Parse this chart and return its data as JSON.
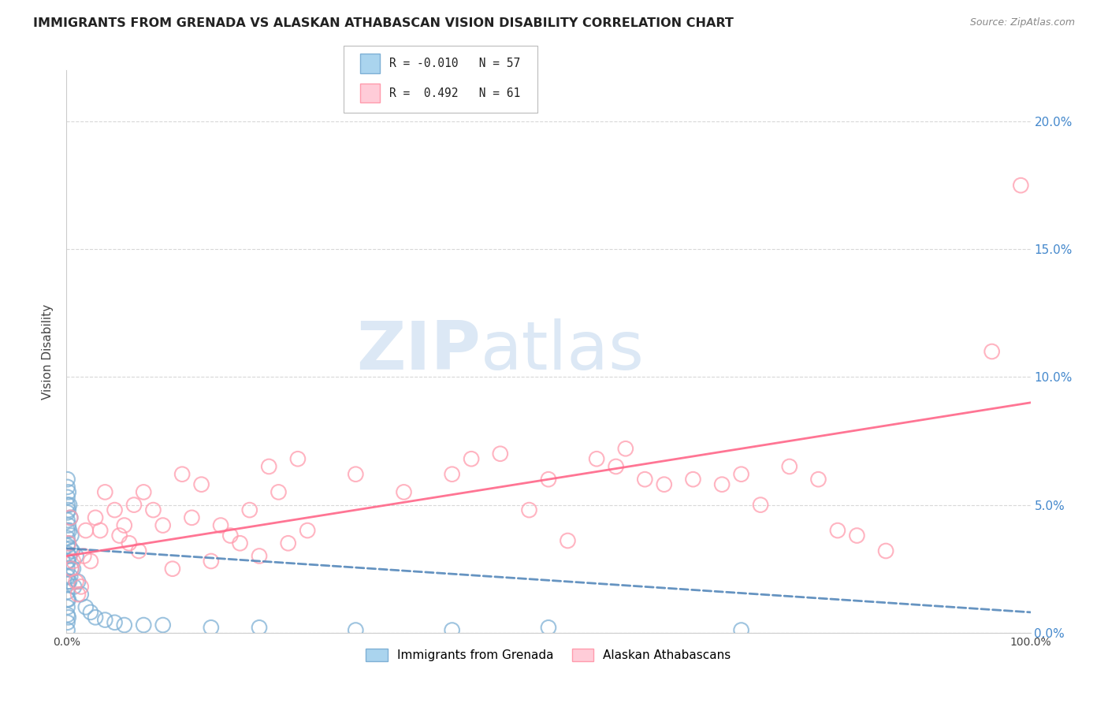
{
  "title": "IMMIGRANTS FROM GRENADA VS ALASKAN ATHABASCAN VISION DISABILITY CORRELATION CHART",
  "source": "Source: ZipAtlas.com",
  "ylabel": "Vision Disability",
  "watermark": "ZIPatlas",
  "legend_r1": "R = -0.010",
  "legend_n1": "N = 57",
  "legend_r2": "R =  0.492",
  "legend_n2": "N = 61",
  "xmin": 0.0,
  "xmax": 1.0,
  "ymin": 0.0,
  "ymax": 0.22,
  "yticks": [
    0.0,
    0.05,
    0.1,
    0.15,
    0.2
  ],
  "ytick_labels": [
    "0.0%",
    "5.0%",
    "10.0%",
    "15.0%",
    "20.0%"
  ],
  "xticks": [
    0.0,
    0.1,
    0.2,
    0.3,
    0.4,
    0.5,
    0.6,
    0.7,
    0.8,
    0.9,
    1.0
  ],
  "xtick_labels": [
    "0.0%",
    "",
    "",
    "",
    "",
    "",
    "",
    "",
    "",
    "",
    "100.0%"
  ],
  "color_blue": "#7EB0D5",
  "color_pink": "#FF9BAD",
  "line_blue": "#5588BB",
  "line_pink": "#FF6688",
  "blue_points": [
    [
      0.001,
      0.06
    ],
    [
      0.001,
      0.057
    ],
    [
      0.001,
      0.053
    ],
    [
      0.001,
      0.05
    ],
    [
      0.001,
      0.047
    ],
    [
      0.001,
      0.044
    ],
    [
      0.001,
      0.04
    ],
    [
      0.001,
      0.037
    ],
    [
      0.001,
      0.034
    ],
    [
      0.001,
      0.031
    ],
    [
      0.001,
      0.028
    ],
    [
      0.001,
      0.025
    ],
    [
      0.001,
      0.022
    ],
    [
      0.001,
      0.019
    ],
    [
      0.001,
      0.016
    ],
    [
      0.001,
      0.013
    ],
    [
      0.001,
      0.01
    ],
    [
      0.001,
      0.007
    ],
    [
      0.001,
      0.004
    ],
    [
      0.001,
      0.001
    ],
    [
      0.002,
      0.055
    ],
    [
      0.002,
      0.048
    ],
    [
      0.002,
      0.042
    ],
    [
      0.002,
      0.035
    ],
    [
      0.002,
      0.028
    ],
    [
      0.002,
      0.02
    ],
    [
      0.002,
      0.013
    ],
    [
      0.002,
      0.006
    ],
    [
      0.003,
      0.05
    ],
    [
      0.003,
      0.04
    ],
    [
      0.003,
      0.03
    ],
    [
      0.003,
      0.02
    ],
    [
      0.004,
      0.045
    ],
    [
      0.004,
      0.033
    ],
    [
      0.004,
      0.022
    ],
    [
      0.005,
      0.038
    ],
    [
      0.005,
      0.025
    ],
    [
      0.006,
      0.032
    ],
    [
      0.007,
      0.025
    ],
    [
      0.008,
      0.018
    ],
    [
      0.01,
      0.03
    ],
    [
      0.012,
      0.02
    ],
    [
      0.015,
      0.015
    ],
    [
      0.02,
      0.01
    ],
    [
      0.025,
      0.008
    ],
    [
      0.03,
      0.006
    ],
    [
      0.04,
      0.005
    ],
    [
      0.05,
      0.004
    ],
    [
      0.06,
      0.003
    ],
    [
      0.08,
      0.003
    ],
    [
      0.1,
      0.003
    ],
    [
      0.15,
      0.002
    ],
    [
      0.2,
      0.002
    ],
    [
      0.3,
      0.001
    ],
    [
      0.4,
      0.001
    ],
    [
      0.5,
      0.002
    ],
    [
      0.7,
      0.001
    ]
  ],
  "pink_points": [
    [
      0.002,
      0.035
    ],
    [
      0.004,
      0.045
    ],
    [
      0.005,
      0.025
    ],
    [
      0.007,
      0.028
    ],
    [
      0.01,
      0.02
    ],
    [
      0.012,
      0.015
    ],
    [
      0.015,
      0.018
    ],
    [
      0.018,
      0.03
    ],
    [
      0.02,
      0.04
    ],
    [
      0.025,
      0.028
    ],
    [
      0.03,
      0.045
    ],
    [
      0.035,
      0.04
    ],
    [
      0.04,
      0.055
    ],
    [
      0.05,
      0.048
    ],
    [
      0.055,
      0.038
    ],
    [
      0.06,
      0.042
    ],
    [
      0.065,
      0.035
    ],
    [
      0.07,
      0.05
    ],
    [
      0.075,
      0.032
    ],
    [
      0.08,
      0.055
    ],
    [
      0.09,
      0.048
    ],
    [
      0.1,
      0.042
    ],
    [
      0.11,
      0.025
    ],
    [
      0.12,
      0.062
    ],
    [
      0.13,
      0.045
    ],
    [
      0.14,
      0.058
    ],
    [
      0.15,
      0.028
    ],
    [
      0.16,
      0.042
    ],
    [
      0.17,
      0.038
    ],
    [
      0.18,
      0.035
    ],
    [
      0.19,
      0.048
    ],
    [
      0.2,
      0.03
    ],
    [
      0.21,
      0.065
    ],
    [
      0.22,
      0.055
    ],
    [
      0.23,
      0.035
    ],
    [
      0.24,
      0.068
    ],
    [
      0.25,
      0.04
    ],
    [
      0.3,
      0.062
    ],
    [
      0.35,
      0.055
    ],
    [
      0.4,
      0.062
    ],
    [
      0.42,
      0.068
    ],
    [
      0.45,
      0.07
    ],
    [
      0.48,
      0.048
    ],
    [
      0.5,
      0.06
    ],
    [
      0.52,
      0.036
    ],
    [
      0.55,
      0.068
    ],
    [
      0.57,
      0.065
    ],
    [
      0.58,
      0.072
    ],
    [
      0.6,
      0.06
    ],
    [
      0.62,
      0.058
    ],
    [
      0.65,
      0.06
    ],
    [
      0.68,
      0.058
    ],
    [
      0.7,
      0.062
    ],
    [
      0.72,
      0.05
    ],
    [
      0.75,
      0.065
    ],
    [
      0.78,
      0.06
    ],
    [
      0.8,
      0.04
    ],
    [
      0.82,
      0.038
    ],
    [
      0.85,
      0.032
    ],
    [
      0.96,
      0.11
    ],
    [
      0.99,
      0.175
    ]
  ],
  "background_color": "#ffffff",
  "grid_color": "#d8d8d8",
  "title_color": "#222222",
  "axis_label_color": "#444444",
  "watermark_color": "#dce8f5"
}
